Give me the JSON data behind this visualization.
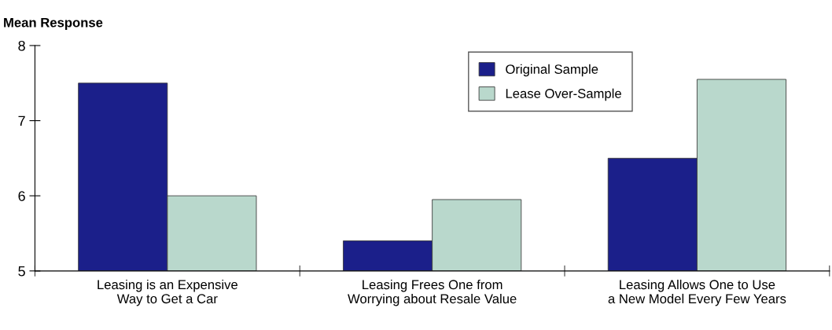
{
  "chart_data": {
    "type": "bar",
    "ylabel": "Mean Response",
    "categories": [
      "Leasing is an Expensive\nWay to Get a Car",
      "Leasing Frees One from\nWorrying about Resale Value",
      "Leasing Allows One to Use\na New Model Every Few Years"
    ],
    "series": [
      {
        "name": "Original Sample",
        "color": "#1b1f8a",
        "values": [
          7.5,
          5.4,
          6.5
        ]
      },
      {
        "name": "Lease Over-Sample",
        "color": "#b9d8cc",
        "values": [
          6.0,
          5.95,
          7.55
        ]
      }
    ],
    "ylim": [
      5,
      8
    ],
    "yticks": [
      5,
      6,
      7,
      8
    ],
    "grid": false,
    "legend": "top right"
  }
}
